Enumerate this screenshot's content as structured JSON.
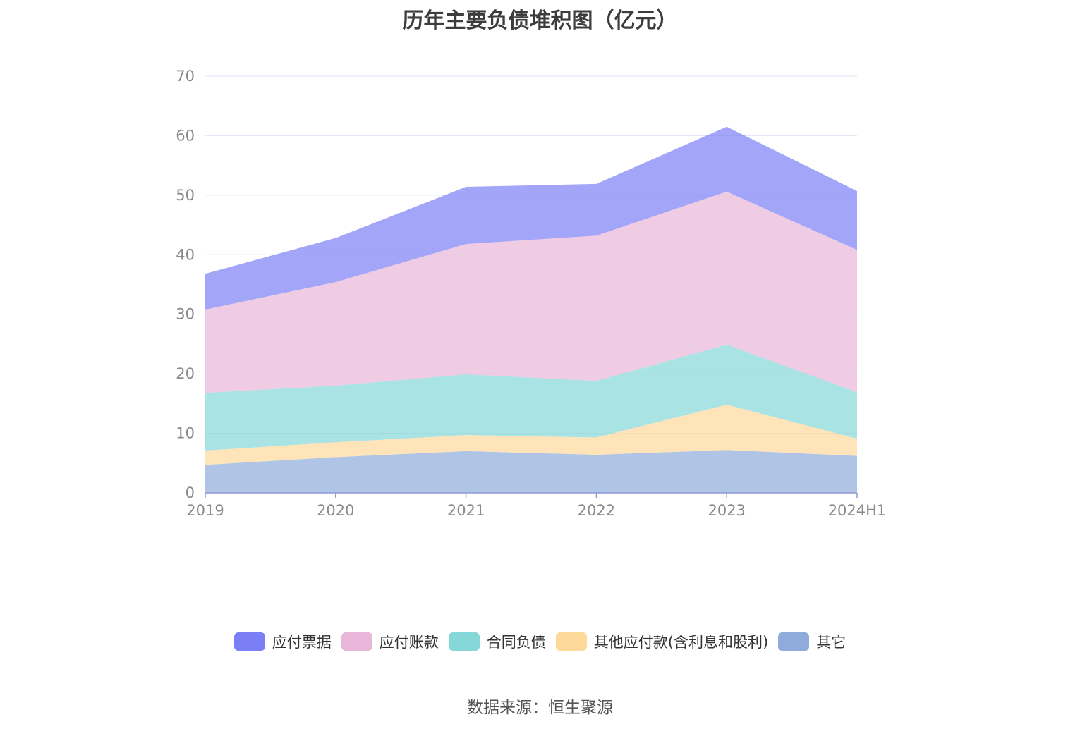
{
  "chart_data": {
    "type": "area",
    "stacked": true,
    "title": "历年主要负债堆积图（亿元）",
    "categories": [
      "2019",
      "2020",
      "2021",
      "2022",
      "2023",
      "2024H1"
    ],
    "ylim": [
      0,
      70
    ],
    "yticks": [
      0,
      10,
      20,
      30,
      40,
      50,
      60,
      70
    ],
    "grid": true,
    "legend_position": "bottom",
    "series": [
      {
        "name": "其它",
        "values": [
          4.7,
          6.0,
          7.0,
          6.4,
          7.2,
          6.2
        ],
        "color": "#8fabdc"
      },
      {
        "name": "其他应付款(含利息和股利)",
        "values": [
          2.4,
          2.5,
          2.7,
          2.9,
          7.6,
          2.9
        ],
        "color": "#fdd99a"
      },
      {
        "name": "合同负债",
        "values": [
          9.7,
          9.5,
          10.2,
          9.5,
          10.1,
          7.8
        ],
        "color": "#86d7d8"
      },
      {
        "name": "应付账款",
        "values": [
          14.0,
          17.4,
          21.9,
          24.4,
          25.7,
          23.9
        ],
        "color": "#e8b6d8"
      },
      {
        "name": "应付票据",
        "values": [
          6.0,
          7.4,
          9.6,
          8.7,
          10.9,
          9.9
        ],
        "color": "#7b7ff5"
      }
    ],
    "legend_order": [
      "应付票据",
      "应付账款",
      "合同负债",
      "其他应付款(含利息和股利)",
      "其它"
    ]
  },
  "source": "数据来源：恒生聚源"
}
